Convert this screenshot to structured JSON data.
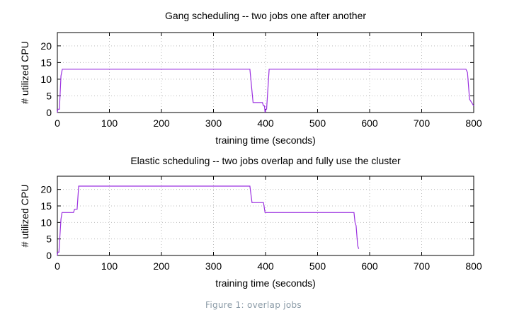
{
  "chart_data": [
    {
      "type": "line",
      "title": "Gang scheduling -- two jobs one after another",
      "xlabel": "training time (seconds)",
      "ylabel": "# utilized CPU",
      "xlim": [
        0,
        800
      ],
      "ylim": [
        0,
        24
      ],
      "xticks": [
        0,
        100,
        200,
        300,
        400,
        500,
        600,
        700,
        800
      ],
      "yticks": [
        0,
        5,
        10,
        15,
        20
      ],
      "grid": true,
      "line_color": "#9b30e0",
      "series": [
        {
          "x": [
            0,
            1,
            4,
            7,
            9.5,
            370,
            376,
            394,
            396,
            398,
            399,
            401,
            402,
            407,
            785,
            788,
            792,
            796,
            800
          ],
          "y": [
            0,
            1,
            1,
            11,
            13,
            13,
            3,
            3,
            2,
            2,
            0,
            1,
            1,
            13,
            13,
            12,
            4,
            3,
            2
          ]
        }
      ]
    },
    {
      "type": "line",
      "title": "Elastic scheduling -- two jobs overlap and fully use the cluster",
      "xlabel": "training time (seconds)",
      "ylabel": "# utilized CPU",
      "xlim": [
        0,
        800
      ],
      "ylim": [
        0,
        24
      ],
      "xticks": [
        0,
        100,
        200,
        300,
        400,
        500,
        600,
        700,
        800
      ],
      "yticks": [
        0,
        5,
        10,
        15,
        20
      ],
      "grid": true,
      "line_color": "#9b30e0",
      "series": [
        {
          "x": [
            0,
            1,
            3,
            7,
            9,
            31,
            33,
            38,
            41,
            370,
            374,
            396,
            399,
            570,
            572,
            574,
            577,
            579
          ],
          "y": [
            0,
            1,
            1,
            11,
            13,
            13,
            14,
            14,
            21,
            21,
            16,
            16,
            13,
            13,
            10,
            9,
            3,
            2
          ]
        }
      ]
    }
  ],
  "caption": "Figure 1: overlap jobs"
}
